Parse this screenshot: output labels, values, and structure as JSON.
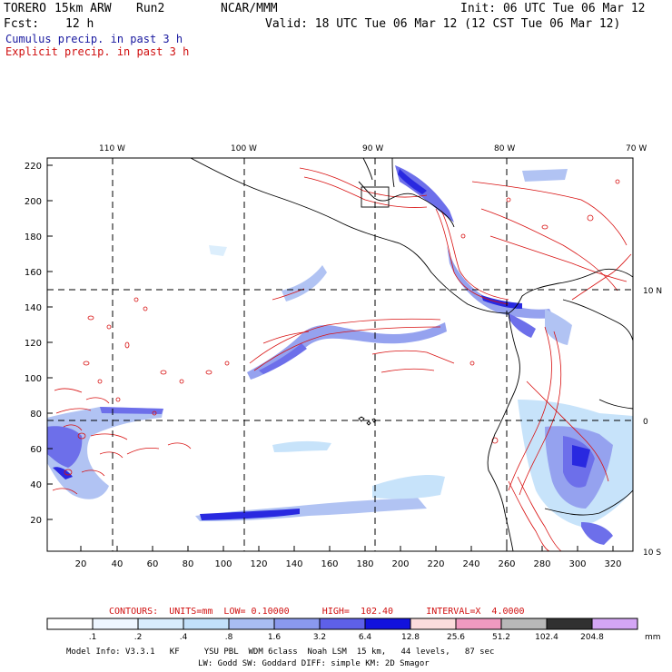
{
  "header": {
    "model_name": "TORERO",
    "resolution": "15km ARW",
    "run": "Run2",
    "org": "NCAR/MMM",
    "init": "Init: 06 UTC Tue 06 Mar 12",
    "fcst_label": "Fcst:",
    "fcst_hours": "12 h",
    "valid": "Valid: 18 UTC Tue 06 Mar 12 (12 CST Tue 06 Mar 12)"
  },
  "legend_lines": {
    "cumulus": "Cumulus precip. in past 3 h",
    "explicit": "Explicit precip. in past 3 h"
  },
  "map": {
    "top_lon_labels": [
      "110 W",
      "100 W",
      "90 W",
      "80 W",
      "70 W"
    ],
    "right_lat_labels": [
      "10 N",
      "0",
      "10 S"
    ],
    "left_ticks": [
      "220",
      "200",
      "180",
      "160",
      "140",
      "120",
      "100",
      "80",
      "60",
      "40",
      "20"
    ],
    "bottom_ticks": [
      "20",
      "40",
      "60",
      "80",
      "100",
      "120",
      "140",
      "160",
      "180",
      "200",
      "220",
      "240",
      "260",
      "280",
      "300",
      "320"
    ]
  },
  "contours_info": {
    "text": "CONTOURS:  UNITS=mm  LOW= 0.10000      HIGH=  102.40      INTERVAL=X  4.0000"
  },
  "colorbar": {
    "labels": [
      ".1",
      ".2",
      ".4",
      ".8",
      "1.6",
      "3.2",
      "6.4",
      "12.8",
      "25.6",
      "51.2",
      "102.4",
      "204.8"
    ],
    "unit": "mm",
    "colors": [
      "#ffffff",
      "#eef6ff",
      "#d8ecfc",
      "#c2e0fa",
      "#a9bdf2",
      "#8a99ee",
      "#5e60e8",
      "#1212dd",
      "#fbdcdc",
      "#f09ac0",
      "#b8b8b8",
      "#303030",
      "#d4a6f5"
    ]
  },
  "model_info": {
    "line1": "Model Info: V3.3.1   KF     YSU PBL  WDM 6class  Noah LSM  15 km,   44 levels,   87 sec",
    "line2": "LW: Godd SW: Goddard DIFF: simple KM: 2D Smagor"
  }
}
